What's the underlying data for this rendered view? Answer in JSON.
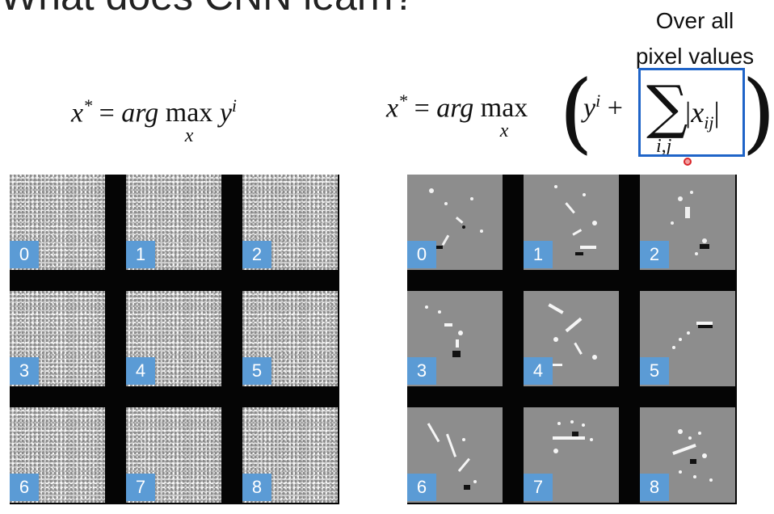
{
  "slide": {
    "title": "What does CNN learn?",
    "caption_line1": "Over all",
    "caption_line2": "pixel values"
  },
  "equation_left": {
    "lhs": "x",
    "star": "*",
    "equals": "=",
    "arg": "arg",
    "max": "max",
    "max_sub": "x",
    "y": "y",
    "y_sup": "i"
  },
  "equation_right": {
    "lhs": "x",
    "star": "*",
    "equals": "=",
    "arg": "arg",
    "max": "max",
    "max_sub": "x",
    "y": "y",
    "y_sup": "i",
    "plus": "+",
    "sum_symbol": "∑",
    "sum_sub": "i,j",
    "abs_term": "x",
    "abs_sub": "ij"
  },
  "left_grid": {
    "labels": [
      "0",
      "1",
      "2",
      "3",
      "4",
      "5",
      "6",
      "7",
      "8"
    ]
  },
  "right_grid": {
    "labels": [
      "0",
      "1",
      "2",
      "3",
      "4",
      "5",
      "6",
      "7",
      "8"
    ]
  },
  "colors": {
    "label_bg": "#5b9bd5",
    "highlight": "#1f64c8",
    "cursor": "#d9262a"
  }
}
